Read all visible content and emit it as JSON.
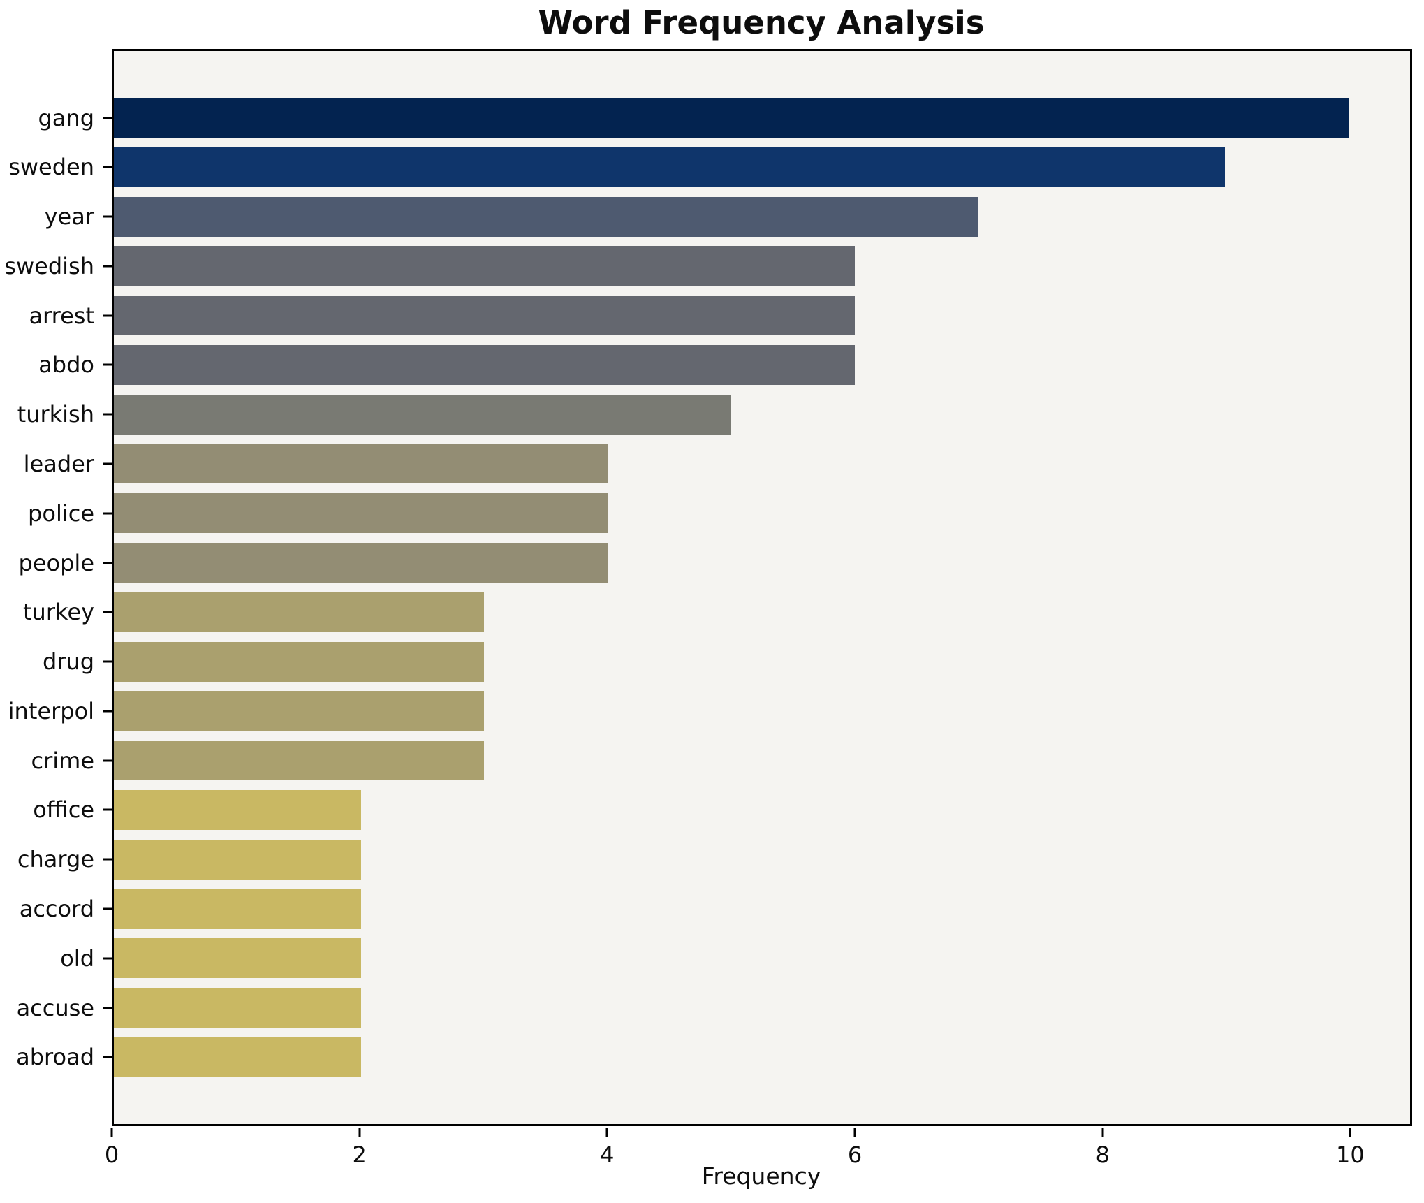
{
  "chart_data": {
    "type": "bar",
    "orientation": "horizontal",
    "title": "Word Frequency Analysis",
    "xlabel": "Frequency",
    "ylabel": "",
    "categories": [
      "gang",
      "sweden",
      "year",
      "swedish",
      "arrest",
      "abdo",
      "turkish",
      "leader",
      "police",
      "people",
      "turkey",
      "drug",
      "interpol",
      "crime",
      "office",
      "charge",
      "accord",
      "old",
      "accuse",
      "abroad"
    ],
    "values": [
      10,
      9,
      7,
      6,
      6,
      6,
      5,
      4,
      4,
      4,
      3,
      3,
      3,
      3,
      2,
      2,
      2,
      2,
      2,
      2
    ],
    "bar_colors": [
      "#032350",
      "#0f356b",
      "#4e5a70",
      "#64676f",
      "#64676f",
      "#64676f",
      "#797a73",
      "#938d74",
      "#938d74",
      "#938d74",
      "#aaa06e",
      "#aaa06e",
      "#aaa06e",
      "#aaa06e",
      "#c9b863",
      "#c9b863",
      "#c9b863",
      "#c9b863",
      "#c9b863",
      "#c9b863"
    ],
    "xticks": [
      0,
      2,
      4,
      6,
      8,
      10
    ],
    "xlim": [
      0,
      10.5
    ],
    "grid": false,
    "legend_position": "none",
    "plot_background": "#f5f4f1",
    "figure_background": "#ffffff",
    "spine_color": "#000000"
  }
}
